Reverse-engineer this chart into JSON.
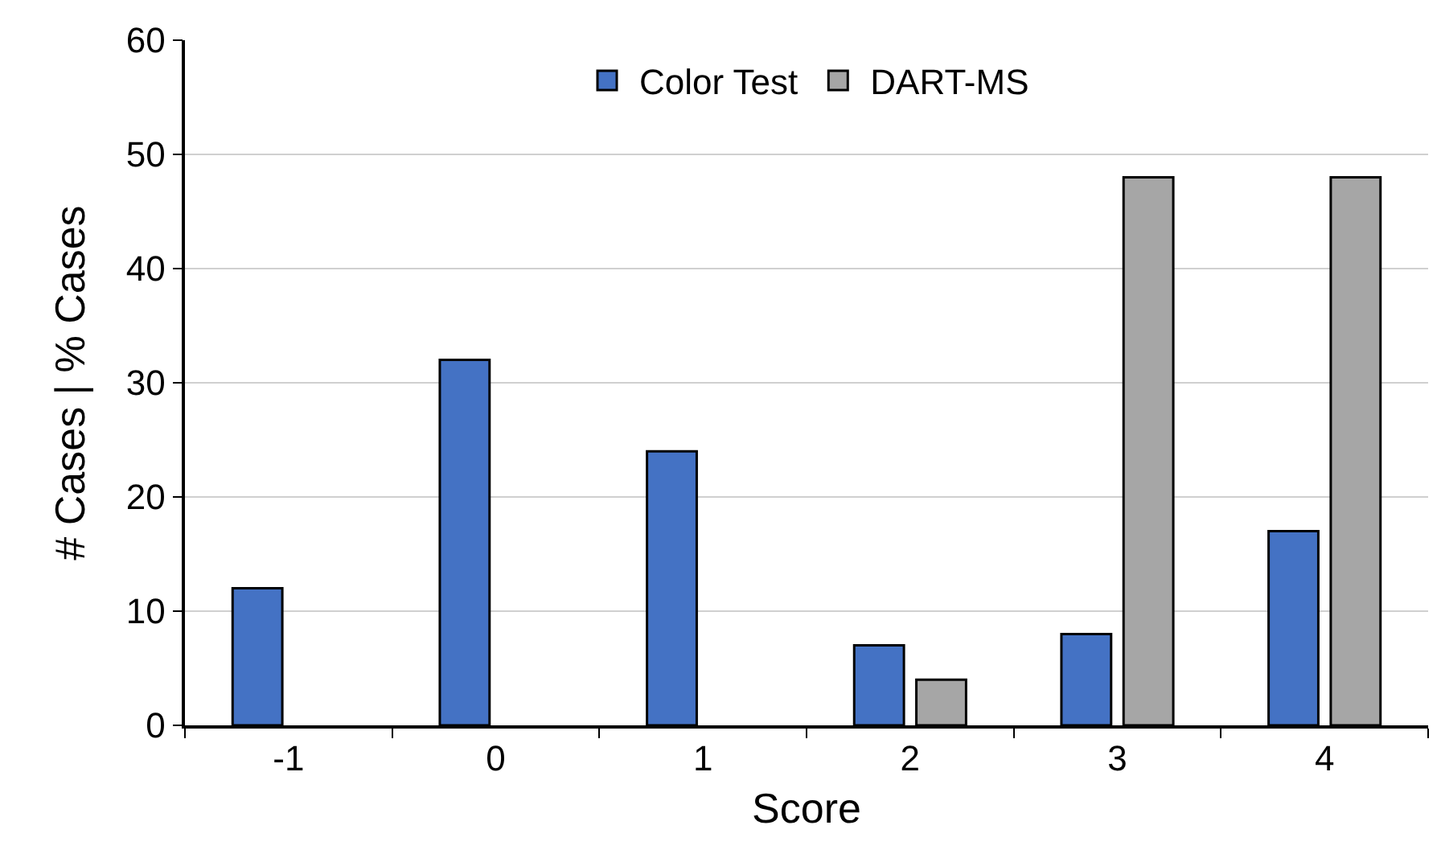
{
  "chart_data": {
    "type": "bar",
    "xlabel": "Score",
    "ylabel": "# Cases | % Cases",
    "categories": [
      "-1",
      "0",
      "1",
      "2",
      "3",
      "4"
    ],
    "series": [
      {
        "name": "Color Test",
        "color": "#4472c4",
        "values": [
          12,
          32,
          24,
          7,
          8,
          17
        ]
      },
      {
        "name": "DART-MS",
        "color": "#a6a6a6",
        "values": [
          null,
          null,
          null,
          4,
          48,
          48
        ]
      }
    ],
    "ylim": [
      0,
      60
    ],
    "yticks": [
      0,
      10,
      20,
      30,
      40,
      50,
      60
    ],
    "grid": "y",
    "legend": "top"
  }
}
